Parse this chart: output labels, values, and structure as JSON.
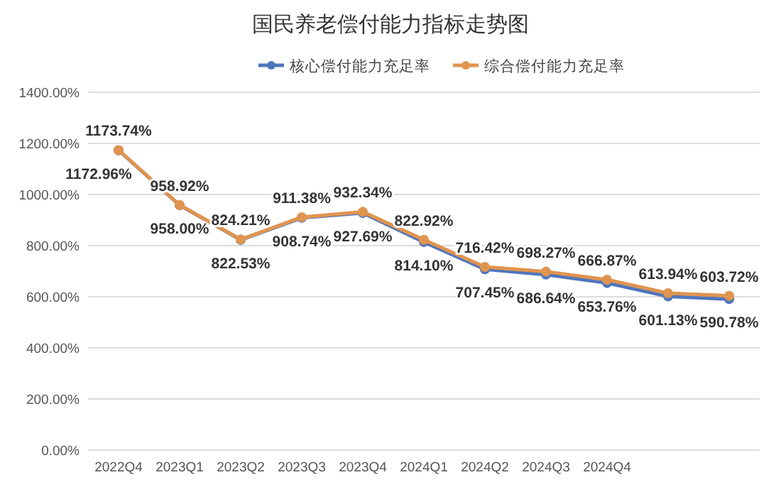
{
  "chart_data": {
    "type": "line",
    "title": "国民养老偿付能力指标走势图",
    "categories": [
      "2022Q4",
      "2023Q1",
      "2023Q2",
      "2023Q3",
      "2023Q4",
      "2024Q1",
      "2024Q2",
      "2024Q3",
      "2024Q4",
      null,
      null
    ],
    "series": [
      {
        "name": "核心偿付能力充足率",
        "color": "#4f76bd",
        "values": [
          1172.96,
          958.0,
          822.53,
          908.74,
          927.69,
          814.1,
          707.45,
          686.64,
          653.76,
          601.13,
          590.78
        ],
        "value_labels": [
          "1172.96%",
          "958.00%",
          "822.53%",
          "908.74%",
          "927.69%",
          "814.10%",
          "707.45%",
          "686.64%",
          "653.76%",
          "601.13%",
          "590.78%"
        ]
      },
      {
        "name": "综合偿付能力充足率",
        "color": "#e0944f",
        "values": [
          1173.74,
          958.92,
          824.21,
          911.38,
          932.34,
          822.92,
          716.42,
          698.27,
          666.87,
          613.94,
          603.72
        ],
        "value_labels": [
          "1173.74%",
          "958.92%",
          "824.21%",
          "911.38%",
          "932.34%",
          "822.92%",
          "716.42%",
          "698.27%",
          "666.87%",
          "613.94%",
          "603.72%"
        ]
      }
    ],
    "ylim": [
      0,
      1400
    ],
    "yticks": [
      {
        "value": 0,
        "label": "0.00%"
      },
      {
        "value": 200,
        "label": "200.00%"
      },
      {
        "value": 400,
        "label": "400.00%"
      },
      {
        "value": 600,
        "label": "600.00%"
      },
      {
        "value": 800,
        "label": "800.00%"
      },
      {
        "value": 1000,
        "label": "1000.00%"
      },
      {
        "value": 1200,
        "label": "1200.00%"
      },
      {
        "value": 1400,
        "label": "1400.00%"
      }
    ],
    "grid": "y",
    "legend": "top",
    "marker": "circle",
    "line_style": "solid"
  }
}
